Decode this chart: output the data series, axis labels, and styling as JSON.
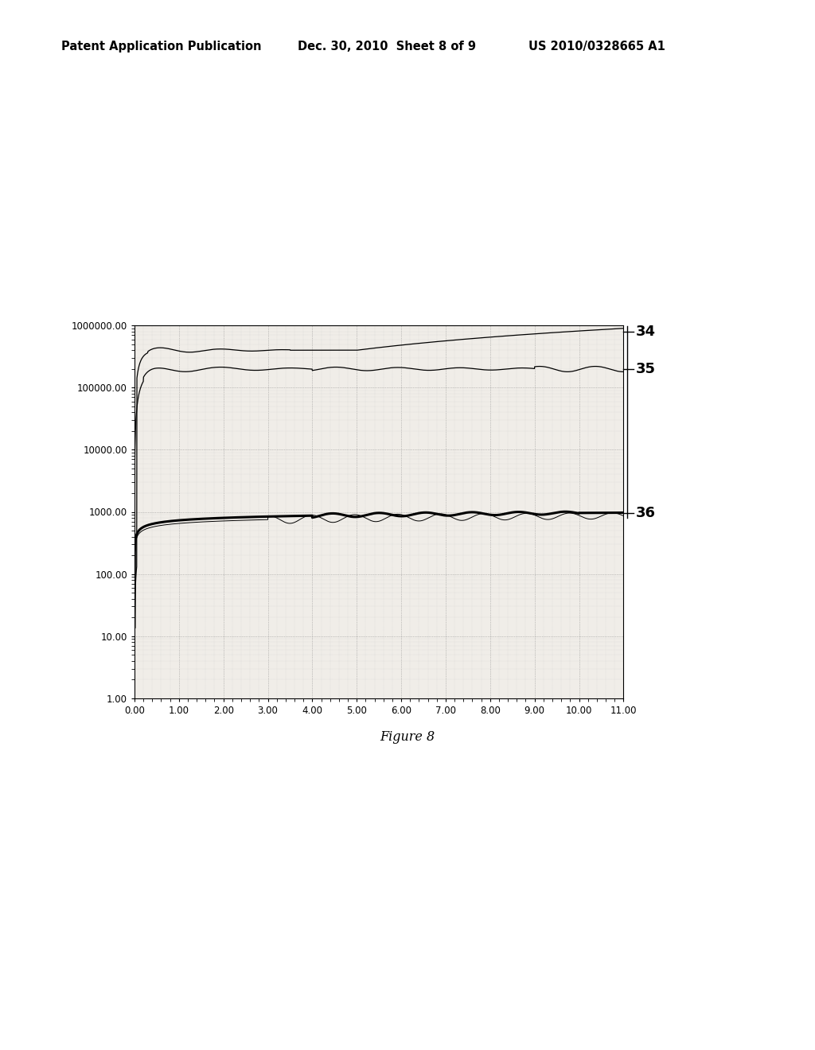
{
  "figure_caption": "Figure 8",
  "header_left": "Patent Application Publication",
  "header_center": "Dec. 30, 2010  Sheet 8 of 9",
  "header_right": "US 2010/0328665 A1",
  "xlim": [
    0.0,
    11.0
  ],
  "ylim_low": 1.0,
  "ylim_high": 1000000.0,
  "xticks": [
    0.0,
    1.0,
    2.0,
    3.0,
    4.0,
    5.0,
    6.0,
    7.0,
    8.0,
    9.0,
    10.0,
    11.0
  ],
  "xtick_labels": [
    "0.00",
    "1.00",
    "2.00",
    "3.00",
    "4.00",
    "5.00",
    "6.00",
    "7.00",
    "8.00",
    "9.00",
    "10.00",
    "11.00"
  ],
  "ytick_vals": [
    1,
    10,
    100,
    1000,
    10000,
    100000,
    1000000
  ],
  "ytick_labels": [
    "1.00",
    "10.00",
    "100.00",
    "1000.00",
    "10000.00",
    "100000.00",
    "1000000.00"
  ],
  "line_labels": [
    "34",
    "35",
    "36"
  ],
  "bg_color": "#f0ede8",
  "grid_major_color": "#888888",
  "grid_minor_color": "#bbbbbb",
  "line_color": "#000000"
}
